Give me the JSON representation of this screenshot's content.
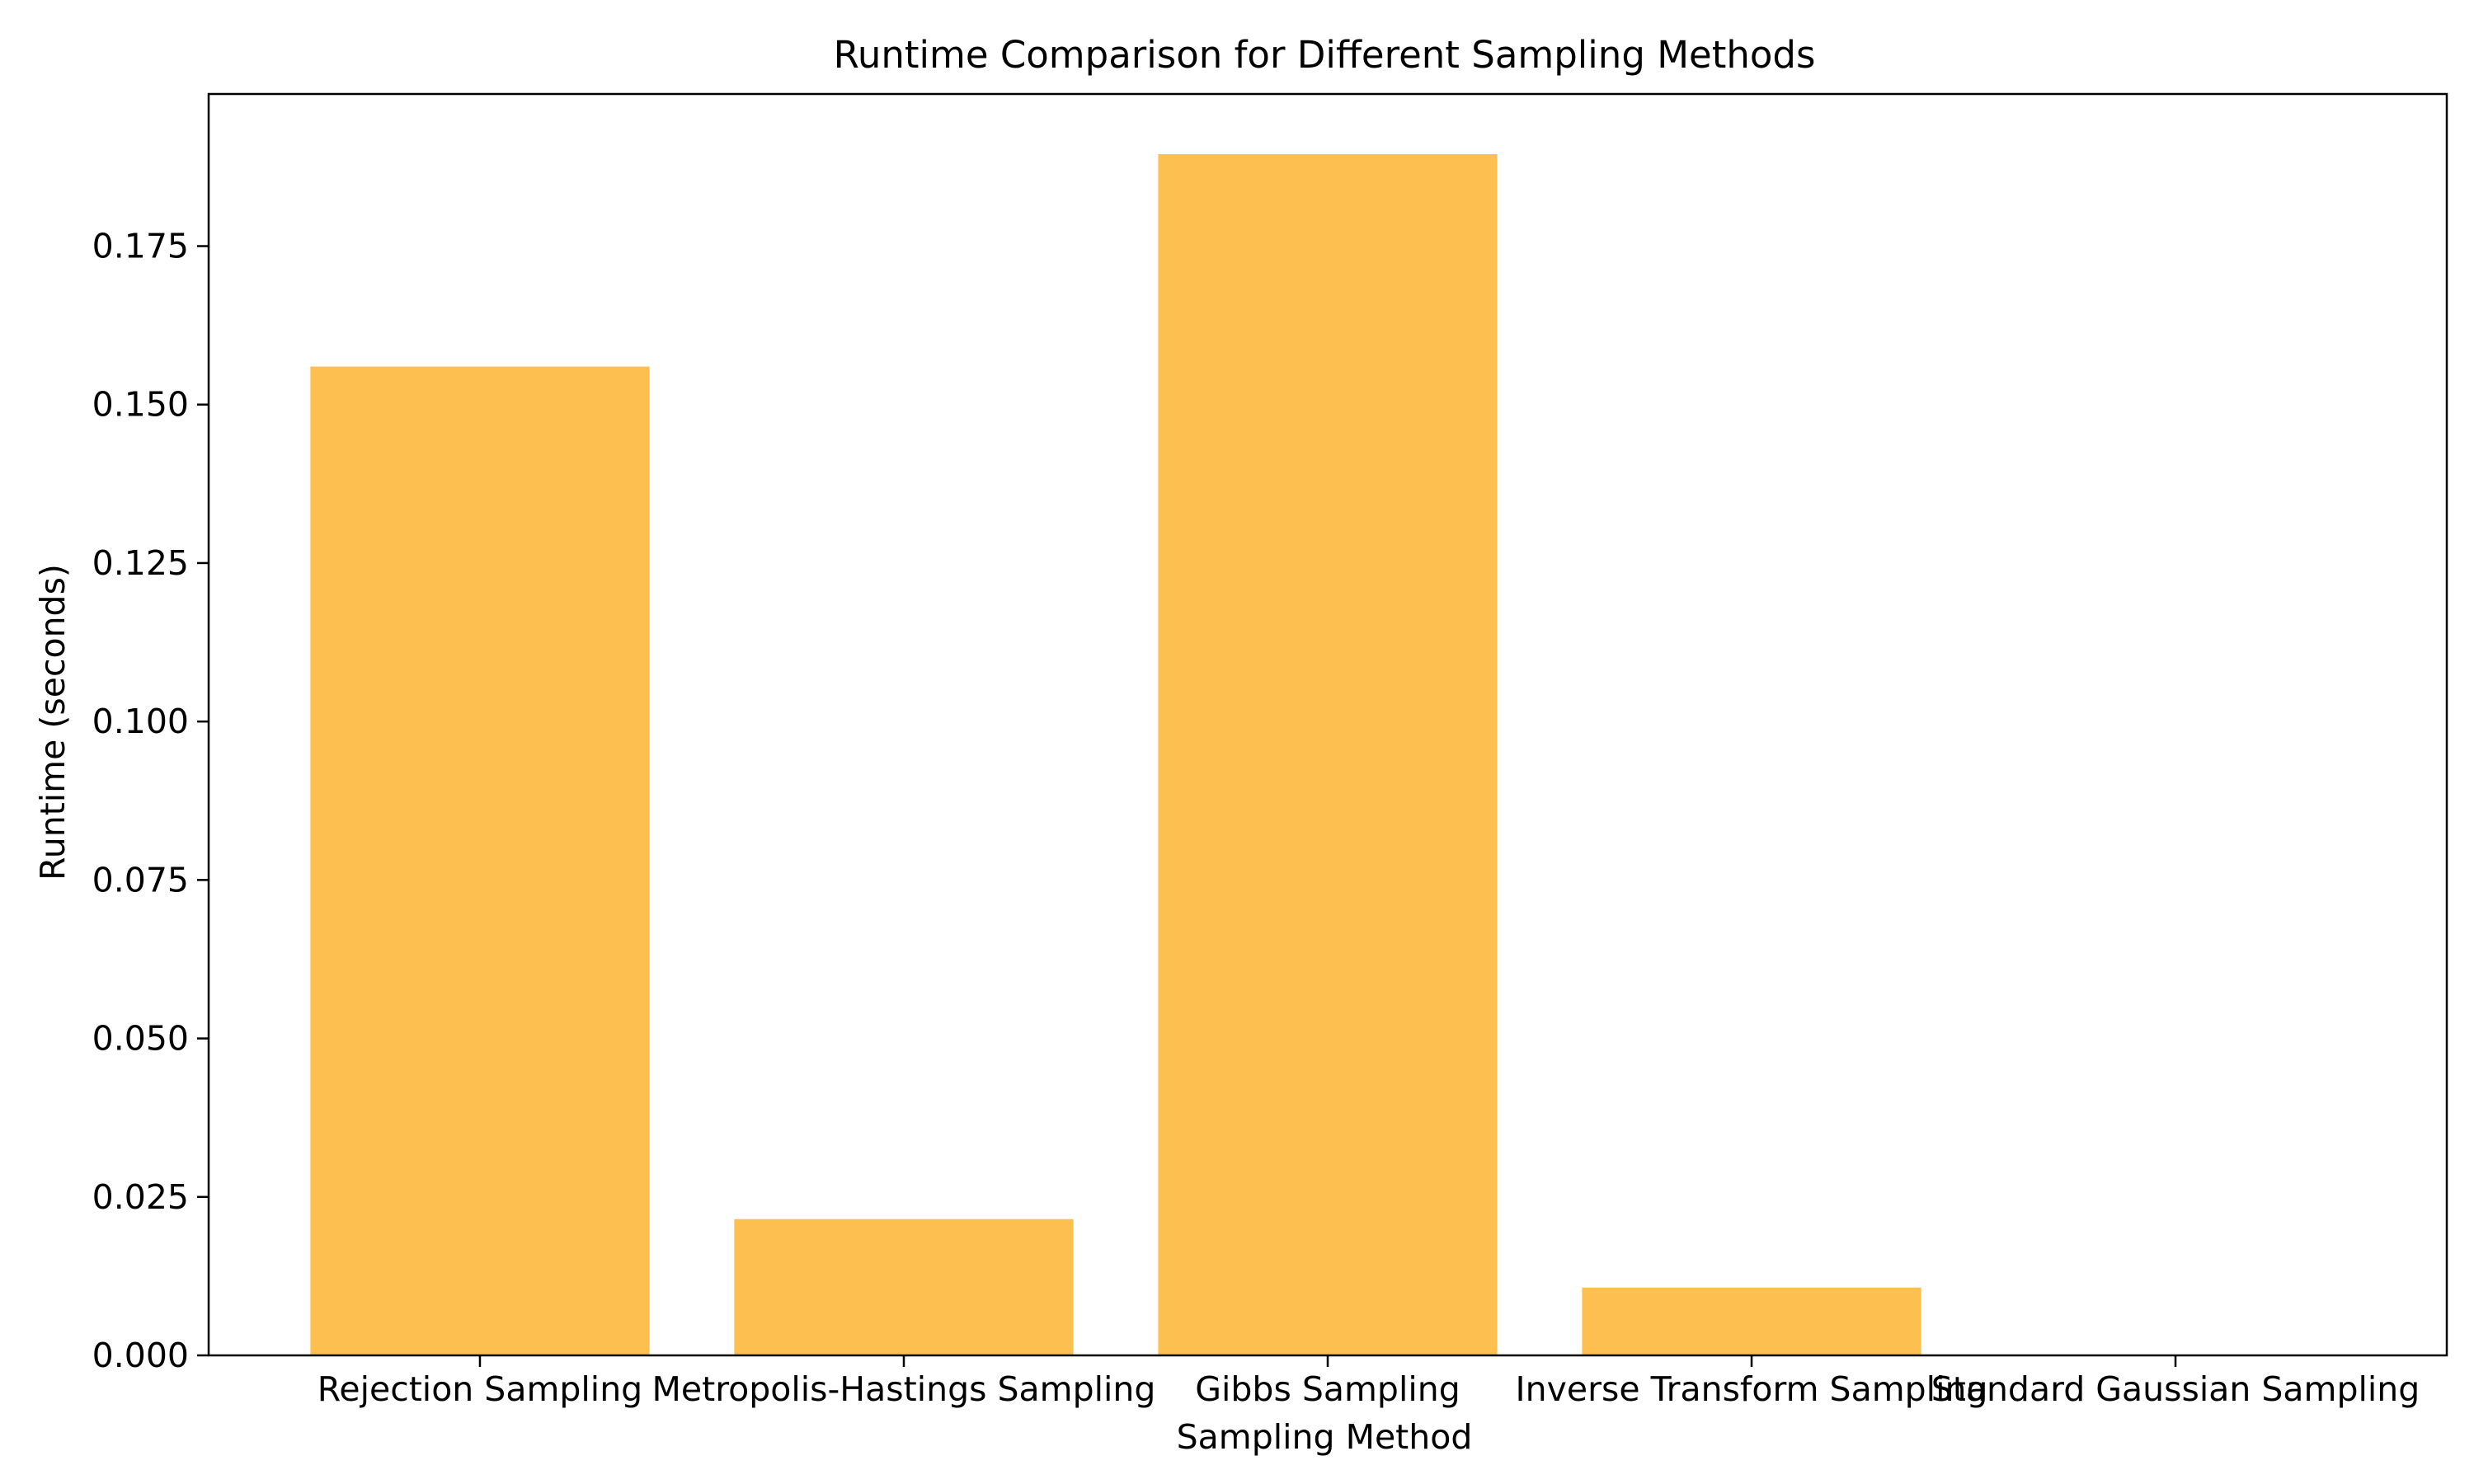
{
  "chart_data": {
    "type": "bar",
    "title": "Runtime Comparison for Different Sampling Methods",
    "xlabel": "Sampling Method",
    "ylabel": "Runtime (seconds)",
    "categories": [
      "Rejection Sampling",
      "Metropolis-Hastings Sampling",
      "Gibbs Sampling",
      "Inverse Transform Sampling",
      "Standard Gaussian Sampling"
    ],
    "values": [
      0.156,
      0.0215,
      0.1895,
      0.0107,
      0.0
    ],
    "ylim": [
      0,
      0.199
    ],
    "yticks": [
      0.0,
      0.025,
      0.05,
      0.075,
      0.1,
      0.125,
      0.15,
      0.175
    ],
    "ytick_labels": [
      "0.000",
      "0.025",
      "0.050",
      "0.075",
      "0.100",
      "0.125",
      "0.150",
      "0.175"
    ],
    "grid": false,
    "legend": "none",
    "bar_color": "#FDBF4F"
  }
}
